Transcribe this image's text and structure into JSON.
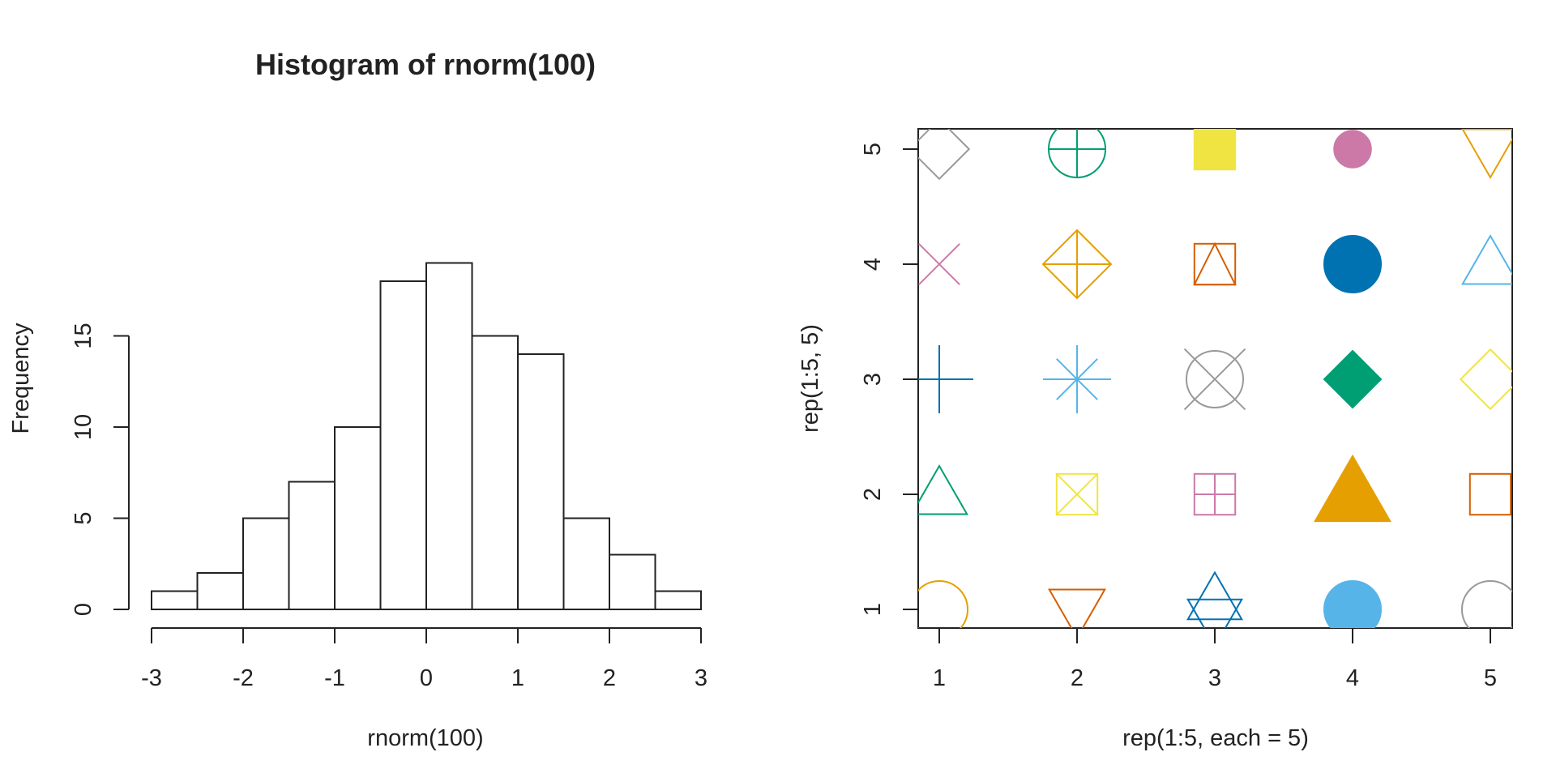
{
  "chart_data": [
    {
      "type": "bar",
      "subtype": "histogram",
      "title": "Histogram of rnorm(100)",
      "xlabel": "rnorm(100)",
      "ylabel": "Frequency",
      "bins": [
        {
          "from": -3.0,
          "to": -2.5,
          "count": 1
        },
        {
          "from": -2.5,
          "to": -2.0,
          "count": 2
        },
        {
          "from": -2.0,
          "to": -1.5,
          "count": 5
        },
        {
          "from": -1.5,
          "to": -1.0,
          "count": 7
        },
        {
          "from": -1.0,
          "to": -0.5,
          "count": 10
        },
        {
          "from": -0.5,
          "to": 0.0,
          "count": 18
        },
        {
          "from": 0.0,
          "to": 0.5,
          "count": 19
        },
        {
          "from": 0.5,
          "to": 1.0,
          "count": 15
        },
        {
          "from": 1.0,
          "to": 1.5,
          "count": 14
        },
        {
          "from": 1.5,
          "to": 2.0,
          "count": 5
        },
        {
          "from": 2.0,
          "to": 2.5,
          "count": 3
        },
        {
          "from": 2.5,
          "to": 3.0,
          "count": 1
        }
      ],
      "xlim": [
        -3,
        3
      ],
      "ylim": [
        0,
        19
      ],
      "xticks": [
        "-3",
        "-2",
        "-1",
        "0",
        "1",
        "2",
        "3"
      ],
      "yticks": [
        "0",
        "5",
        "10",
        "15"
      ],
      "fill": "#ffffff",
      "stroke": "#222222",
      "grid": false
    },
    {
      "type": "scatter",
      "xlabel": "rep(1:5, each = 5)",
      "ylabel": "rep(1:5, 5)",
      "xlim": [
        0.84,
        5.16
      ],
      "ylim": [
        0.84,
        5.16
      ],
      "xticks": [
        "1",
        "2",
        "3",
        "4",
        "5"
      ],
      "yticks": [
        "1",
        "2",
        "3",
        "4",
        "5"
      ],
      "grid": false,
      "points": [
        {
          "x": 1,
          "y": 1,
          "pch": 1,
          "shape": "circle",
          "color": "#E69F00"
        },
        {
          "x": 1,
          "y": 2,
          "pch": 2,
          "shape": "triangle-up",
          "color": "#009E73"
        },
        {
          "x": 1,
          "y": 3,
          "pch": 3,
          "shape": "plus",
          "color": "#0072B2"
        },
        {
          "x": 1,
          "y": 4,
          "pch": 4,
          "shape": "cross",
          "color": "#CC79A7"
        },
        {
          "x": 1,
          "y": 5,
          "pch": 5,
          "shape": "diamond",
          "color": "#999999"
        },
        {
          "x": 2,
          "y": 1,
          "pch": 6,
          "shape": "triangle-down",
          "color": "#D55E00"
        },
        {
          "x": 2,
          "y": 2,
          "pch": 7,
          "shape": "square-cross",
          "color": "#F0E442"
        },
        {
          "x": 2,
          "y": 3,
          "pch": 8,
          "shape": "asterisk",
          "color": "#56B4E9"
        },
        {
          "x": 2,
          "y": 4,
          "pch": 9,
          "shape": "diamond-plus",
          "color": "#E69F00"
        },
        {
          "x": 2,
          "y": 5,
          "pch": 10,
          "shape": "circle-plus",
          "color": "#009E73"
        },
        {
          "x": 3,
          "y": 1,
          "pch": 11,
          "shape": "star-of-david",
          "color": "#0072B2"
        },
        {
          "x": 3,
          "y": 2,
          "pch": 12,
          "shape": "square-plus",
          "color": "#CC79A7"
        },
        {
          "x": 3,
          "y": 3,
          "pch": 13,
          "shape": "circle-cross",
          "color": "#999999"
        },
        {
          "x": 3,
          "y": 4,
          "pch": 14,
          "shape": "square-triangle",
          "color": "#D55E00"
        },
        {
          "x": 3,
          "y": 5,
          "pch": 15,
          "shape": "filled-square",
          "color": "#F0E442"
        },
        {
          "x": 4,
          "y": 1,
          "pch": 16,
          "shape": "filled-circle",
          "color": "#56B4E9"
        },
        {
          "x": 4,
          "y": 2,
          "pch": 17,
          "shape": "filled-triangle",
          "color": "#E69F00"
        },
        {
          "x": 4,
          "y": 3,
          "pch": 18,
          "shape": "filled-diamond",
          "color": "#009E73"
        },
        {
          "x": 4,
          "y": 4,
          "pch": 19,
          "shape": "filled-circle",
          "color": "#0072B2"
        },
        {
          "x": 4,
          "y": 5,
          "pch": 20,
          "shape": "small-filled-circle",
          "color": "#CC79A7"
        },
        {
          "x": 5,
          "y": 1,
          "pch": 21,
          "shape": "circle",
          "color": "#999999"
        },
        {
          "x": 5,
          "y": 2,
          "pch": 22,
          "shape": "square",
          "color": "#D55E00"
        },
        {
          "x": 5,
          "y": 3,
          "pch": 23,
          "shape": "diamond",
          "color": "#F0E442"
        },
        {
          "x": 5,
          "y": 4,
          "pch": 24,
          "shape": "triangle-up",
          "color": "#56B4E9"
        },
        {
          "x": 5,
          "y": 5,
          "pch": 25,
          "shape": "triangle-down",
          "color": "#E69F00"
        }
      ]
    }
  ]
}
